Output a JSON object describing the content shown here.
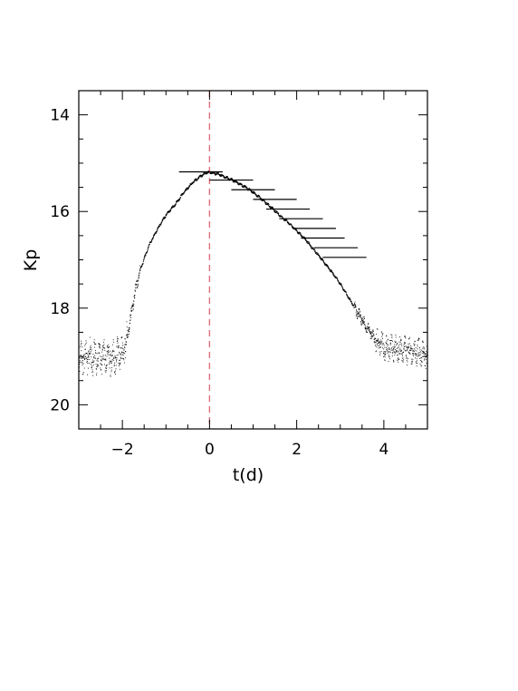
{
  "chart_data": {
    "type": "scatter",
    "title": "",
    "xlabel": "t(d)",
    "ylabel": "Kp",
    "xlim": [
      -3,
      5
    ],
    "ylim": [
      20.5,
      13.5
    ],
    "y_inverted": true,
    "grid": false,
    "legend": "none",
    "x_ticks": [
      -2,
      0,
      2,
      4
    ],
    "x_tick_labels": [
      "−2",
      "0",
      "2",
      "4"
    ],
    "y_ticks": [
      14,
      16,
      18,
      20
    ],
    "y_tick_labels": [
      "14",
      "16",
      "18",
      "20"
    ],
    "reference_line": {
      "x": 0,
      "style": "dashed",
      "color": "#e0707a"
    },
    "light_curve": {
      "color": "#000000",
      "x": [
        -3.0,
        -2.6,
        -2.2,
        -2.0,
        -1.9,
        -1.8,
        -1.7,
        -1.6,
        -1.4,
        -1.2,
        -1.0,
        -0.8,
        -0.6,
        -0.4,
        -0.2,
        -0.1,
        0.0,
        0.2,
        0.4,
        0.6,
        0.8,
        1.0,
        1.2,
        1.4,
        1.6,
        1.8,
        2.0,
        2.2,
        2.4,
        2.6,
        2.8,
        3.0,
        3.2,
        3.4,
        3.6,
        3.8,
        4.0,
        4.4,
        4.8,
        5.0
      ],
      "y": [
        19.0,
        19.0,
        19.0,
        18.9,
        18.6,
        18.1,
        17.6,
        17.2,
        16.7,
        16.35,
        16.05,
        15.85,
        15.6,
        15.4,
        15.25,
        15.2,
        15.18,
        15.22,
        15.3,
        15.38,
        15.48,
        15.6,
        15.75,
        15.9,
        16.07,
        16.22,
        16.4,
        16.58,
        16.8,
        17.02,
        17.25,
        17.5,
        17.8,
        18.1,
        18.4,
        18.65,
        18.8,
        18.85,
        18.9,
        18.95
      ]
    },
    "model_bars": {
      "color": "#000000",
      "x": [
        -0.2,
        0.5,
        1.0,
        1.5,
        1.8,
        2.1,
        2.4,
        2.6,
        2.9,
        3.1
      ],
      "y": [
        15.18,
        15.35,
        15.55,
        15.75,
        15.95,
        16.15,
        16.35,
        16.55,
        16.75,
        16.95
      ],
      "half_width": 0.5
    },
    "noise_amplitude_baseline": 0.35,
    "noise_amplitude_peak": 0.03
  }
}
